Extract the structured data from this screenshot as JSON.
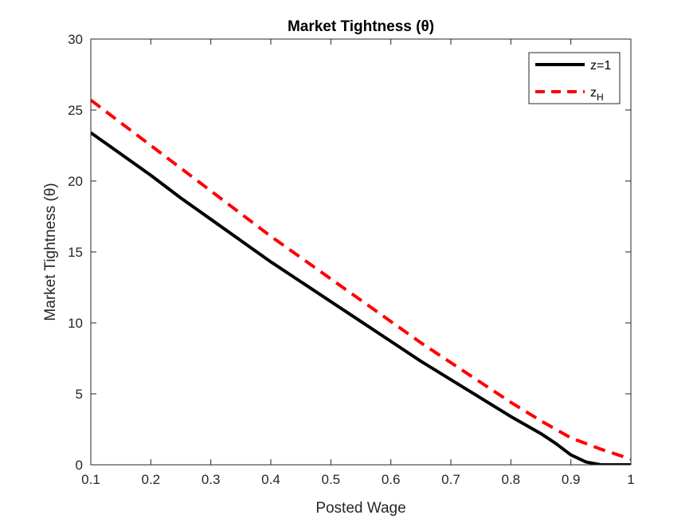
{
  "chart_data": {
    "type": "line",
    "title": "Market Tightness (θ)",
    "xlabel": "Posted Wage",
    "ylabel": "Market Tightness (θ)",
    "xlim": [
      0.1,
      1
    ],
    "ylim": [
      0,
      30
    ],
    "xticks": [
      0.1,
      0.2,
      0.3,
      0.4,
      0.5,
      0.6,
      0.7,
      0.8,
      0.9,
      1
    ],
    "xtick_labels": [
      "0.1",
      "0.2",
      "0.3",
      "0.4",
      "0.5",
      "0.6",
      "0.7",
      "0.8",
      "0.9",
      "1"
    ],
    "yticks": [
      0,
      5,
      10,
      15,
      20,
      25,
      30
    ],
    "ytick_labels": [
      "0",
      "5",
      "10",
      "15",
      "20",
      "25",
      "30"
    ],
    "grid": false,
    "legend_position": "top-right",
    "series": [
      {
        "name": "z=1",
        "name_main": "z=1",
        "name_sub": "",
        "color": "#000000",
        "style": "solid",
        "x": [
          0.1,
          0.15,
          0.2,
          0.25,
          0.3,
          0.35,
          0.4,
          0.45,
          0.5,
          0.55,
          0.6,
          0.65,
          0.7,
          0.75,
          0.8,
          0.85,
          0.875,
          0.9,
          0.925,
          0.95,
          0.975,
          1.0
        ],
        "y": [
          23.4,
          21.9,
          20.4,
          18.8,
          17.3,
          15.8,
          14.3,
          12.9,
          11.5,
          10.1,
          8.7,
          7.3,
          6.0,
          4.7,
          3.4,
          2.2,
          1.5,
          0.7,
          0.2,
          0.0,
          0.0,
          0.0
        ]
      },
      {
        "name": "zH",
        "name_main": "z",
        "name_sub": "H",
        "color": "#ff0000",
        "style": "dashed",
        "x": [
          0.1,
          0.15,
          0.2,
          0.25,
          0.3,
          0.35,
          0.4,
          0.45,
          0.5,
          0.55,
          0.6,
          0.65,
          0.7,
          0.75,
          0.8,
          0.85,
          0.9,
          0.95,
          1.0
        ],
        "y": [
          25.7,
          24.1,
          22.5,
          20.9,
          19.3,
          17.7,
          16.1,
          14.6,
          13.1,
          11.6,
          10.1,
          8.6,
          7.2,
          5.8,
          4.4,
          3.1,
          1.9,
          1.1,
          0.4
        ]
      }
    ]
  }
}
